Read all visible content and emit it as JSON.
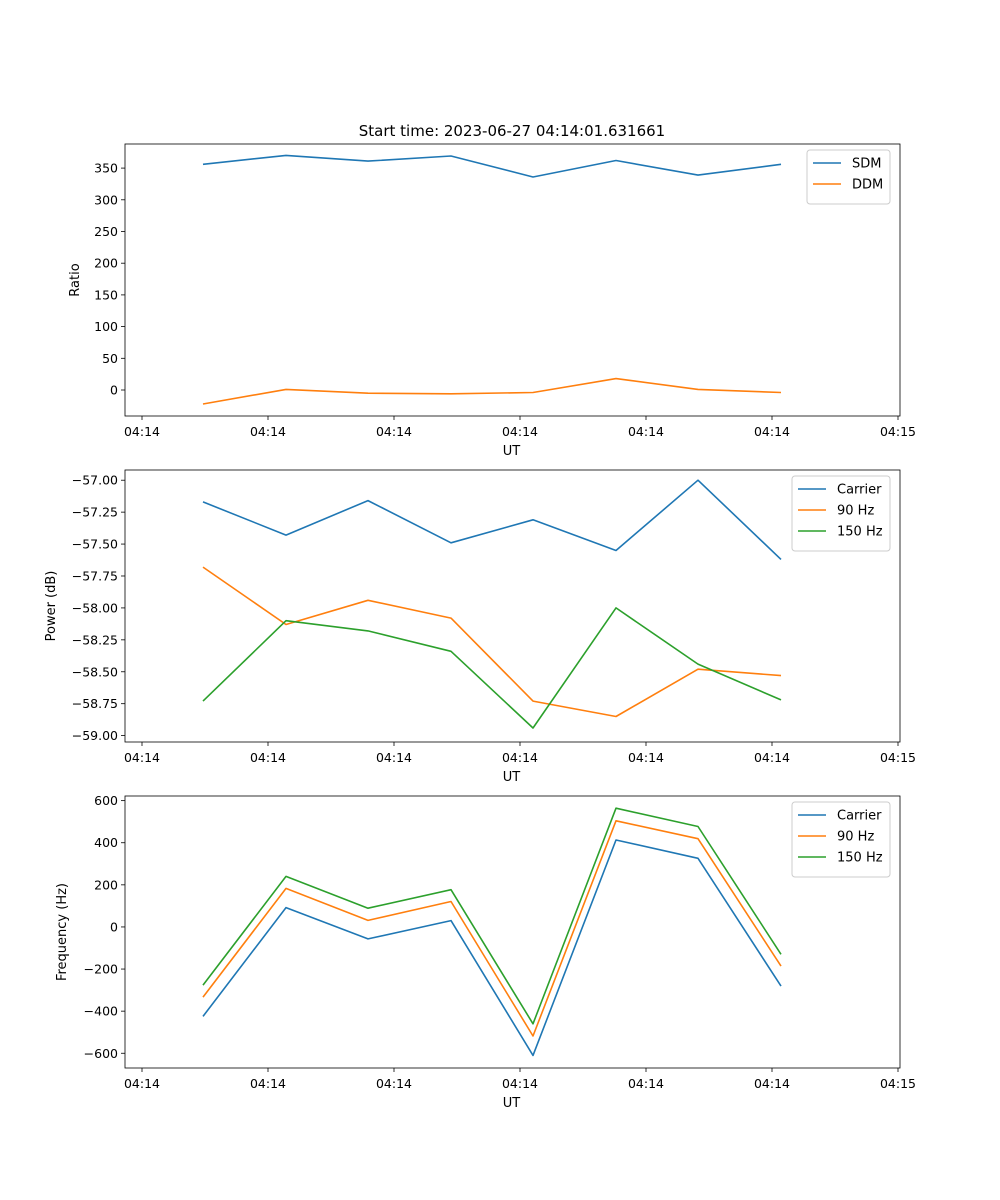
{
  "title": "Start time: 2023-06-27 04:14:01.631661",
  "colors": {
    "blue": "#1f77b4",
    "orange": "#ff7f0e",
    "green": "#2ca02c"
  },
  "chart_data": [
    {
      "type": "line",
      "xlabel": "UT",
      "ylabel": "Ratio",
      "x_tick_labels": [
        "04:14",
        "04:14",
        "04:14",
        "04:14",
        "04:14",
        "04:14",
        "04:14",
        "04:15"
      ],
      "y_ticks": [
        0,
        50,
        100,
        150,
        200,
        250,
        300,
        350
      ],
      "y_tick_labels": [
        "0",
        "50",
        "100",
        "150",
        "200",
        "250",
        "300",
        "350"
      ],
      "ylim": [
        -41,
        388
      ],
      "legend": "top-right",
      "series": [
        {
          "name": "SDM",
          "color": "#1f77b4",
          "values": [
            356,
            370,
            361,
            369,
            336,
            362,
            339,
            356
          ]
        },
        {
          "name": "DDM",
          "color": "#ff7f0e",
          "values": [
            -22,
            1,
            -5,
            -6,
            -4,
            18,
            1,
            -4
          ]
        }
      ]
    },
    {
      "type": "line",
      "xlabel": "UT",
      "ylabel": "Power (dB)",
      "x_tick_labels": [
        "04:14",
        "04:14",
        "04:14",
        "04:14",
        "04:14",
        "04:14",
        "04:14",
        "04:15"
      ],
      "y_ticks": [
        -59.0,
        -58.75,
        -58.5,
        -58.25,
        -58.0,
        -57.75,
        -57.5,
        -57.25,
        -57.0
      ],
      "y_tick_labels": [
        "−59.00",
        "−58.75",
        "−58.50",
        "−58.25",
        "−58.00",
        "−57.75",
        "−57.50",
        "−57.25",
        "−57.00"
      ],
      "ylim": [
        -59.05,
        -56.92
      ],
      "legend": "top-right",
      "series": [
        {
          "name": "Carrier",
          "color": "#1f77b4",
          "values": [
            -57.17,
            -57.43,
            -57.16,
            -57.49,
            -57.31,
            -57.55,
            -57.0,
            -57.62
          ]
        },
        {
          "name": "90 Hz",
          "color": "#ff7f0e",
          "values": [
            -57.68,
            -58.13,
            -57.94,
            -58.08,
            -58.73,
            -58.85,
            -58.48,
            -58.53
          ]
        },
        {
          "name": "150 Hz",
          "color": "#2ca02c",
          "values": [
            -58.73,
            -58.1,
            -58.18,
            -58.34,
            -58.94,
            -58.0,
            -58.44,
            -58.72
          ]
        }
      ]
    },
    {
      "type": "line",
      "xlabel": "UT",
      "ylabel": "Frequency (Hz)",
      "x_tick_labels": [
        "04:14",
        "04:14",
        "04:14",
        "04:14",
        "04:14",
        "04:14",
        "04:14",
        "04:15"
      ],
      "y_ticks": [
        -600,
        -400,
        -200,
        0,
        200,
        400,
        600
      ],
      "y_tick_labels": [
        "−600",
        "−400",
        "−200",
        "0",
        "200",
        "400",
        "600"
      ],
      "ylim": [
        -670,
        622
      ],
      "legend": "top-right",
      "series": [
        {
          "name": "Carrier",
          "color": "#1f77b4",
          "values": [
            -425,
            92,
            -57,
            30,
            -610,
            413,
            326,
            -281
          ]
        },
        {
          "name": "90 Hz",
          "color": "#ff7f0e",
          "values": [
            -333,
            183,
            31,
            121,
            -518,
            504,
            419,
            -186
          ]
        },
        {
          "name": "150 Hz",
          "color": "#2ca02c",
          "values": [
            -276,
            240,
            89,
            177,
            -460,
            564,
            477,
            -130
          ]
        }
      ]
    }
  ]
}
